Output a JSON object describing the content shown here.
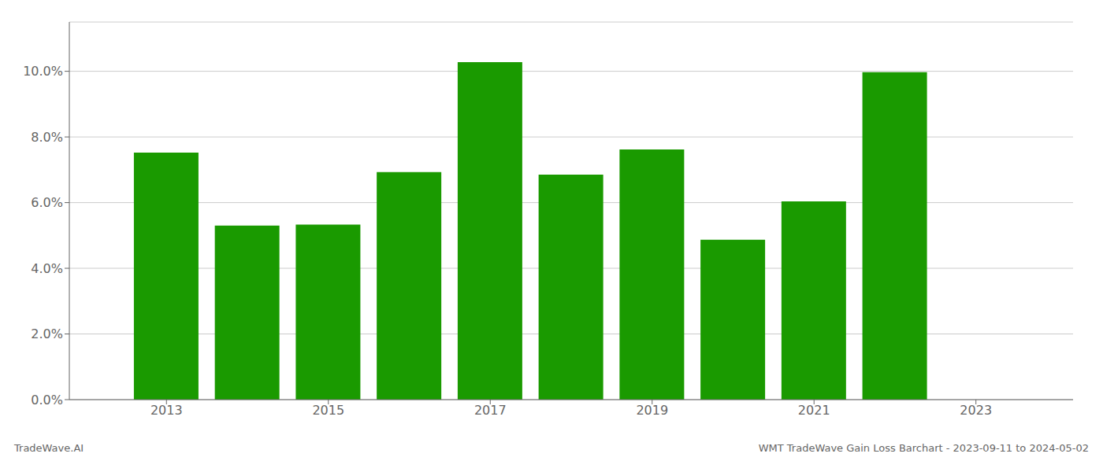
{
  "chart_data": {
    "type": "bar",
    "x": [
      2013,
      2014,
      2015,
      2016,
      2017,
      2018,
      2019,
      2020,
      2021,
      2022
    ],
    "values": [
      0.0752,
      0.053,
      0.0533,
      0.0693,
      0.1028,
      0.0685,
      0.0762,
      0.0487,
      0.0604,
      0.0997
    ],
    "color": "#1a9a00",
    "xlim": [
      2011.8,
      2024.2
    ],
    "xticks": [
      2013,
      2015,
      2017,
      2019,
      2021,
      2023
    ],
    "ylim": [
      0,
      0.115
    ],
    "yticks": [
      {
        "value": 0.0,
        "label": "0.0%"
      },
      {
        "value": 0.02,
        "label": "2.0%"
      },
      {
        "value": 0.04,
        "label": "4.0%"
      },
      {
        "value": 0.06,
        "label": "6.0%"
      },
      {
        "value": 0.08,
        "label": "8.0%"
      },
      {
        "value": 0.1,
        "label": "10.0%"
      }
    ],
    "grid": true,
    "annotations": [
      "TradeWave.AI",
      "WMT TradeWave Gain Loss Barchart - 2023-09-11 to 2024-05-02"
    ]
  }
}
